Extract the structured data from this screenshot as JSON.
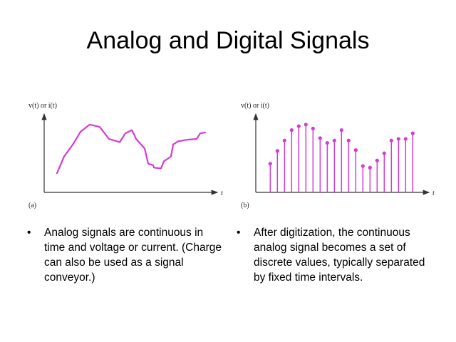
{
  "title": "Analog and Digital Signals",
  "figures": {
    "analog": {
      "ylabel": "v(t) or i(t)",
      "xlabel": "t",
      "panel": "(a)",
      "color": "#d63ad6",
      "curve": [
        [
          1.8,
          24
        ],
        [
          2.8,
          45
        ],
        [
          4.1,
          61
        ],
        [
          5.1,
          76
        ],
        [
          6.4,
          85
        ],
        [
          7.8,
          82
        ],
        [
          9.1,
          67
        ],
        [
          10.6,
          63
        ],
        [
          11.4,
          74
        ],
        [
          12.3,
          78
        ],
        [
          12.6,
          73
        ],
        [
          12.9,
          67
        ],
        [
          14.1,
          55
        ],
        [
          14.6,
          36
        ],
        [
          15.3,
          34
        ],
        [
          15.4,
          31
        ],
        [
          16.4,
          30
        ],
        [
          16.8,
          39
        ],
        [
          17.3,
          42
        ],
        [
          17.8,
          45
        ],
        [
          18.1,
          60
        ],
        [
          18.8,
          64
        ],
        [
          20.1,
          66
        ],
        [
          21.4,
          67
        ],
        [
          21.9,
          74
        ],
        [
          22.6,
          75
        ]
      ]
    },
    "digital": {
      "ylabel": "v(t) or i(t)",
      "xlabel": "t",
      "panel": "(b)",
      "color": "#d63ad6",
      "samples": [
        36,
        52,
        65,
        78,
        83,
        85,
        80,
        68,
        62,
        65,
        78,
        65,
        53,
        33,
        31,
        40,
        49,
        65,
        67,
        67,
        74
      ]
    }
  },
  "bullets": {
    "left": "Analog signals are continuous in time and voltage or current. (Charge can also be used as a signal conveyor.)",
    "right": "After digitization, the continuous analog signal becomes a set of discrete values, typically separated by fixed time intervals.",
    "marker": "•"
  }
}
